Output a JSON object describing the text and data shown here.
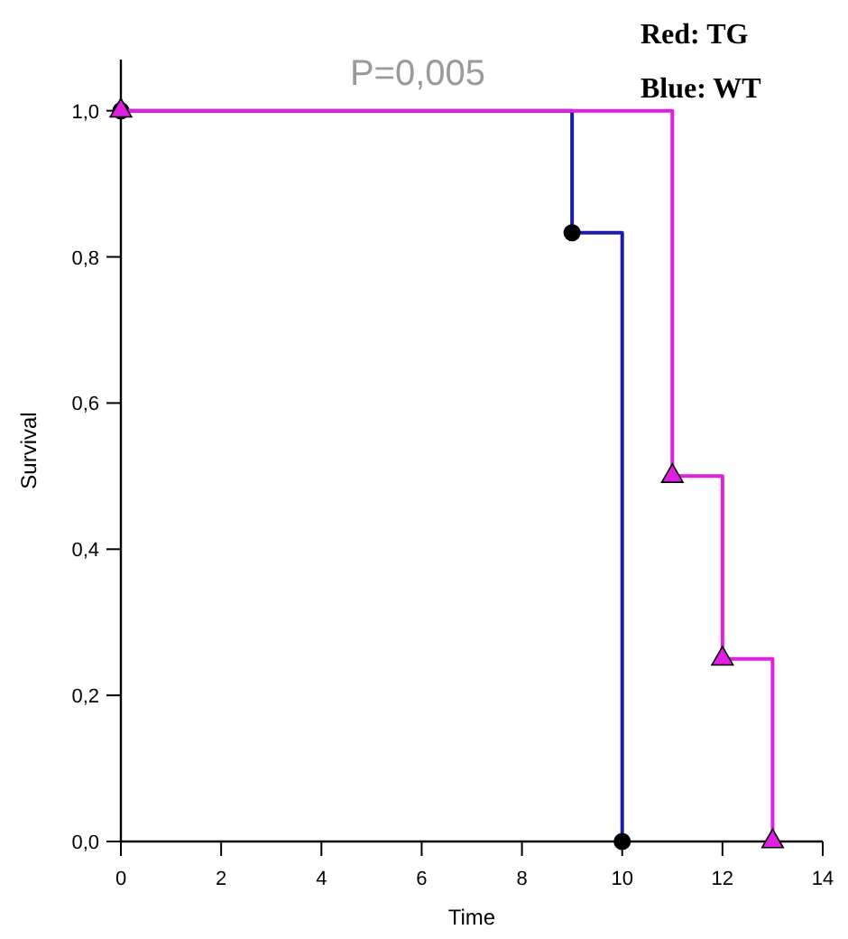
{
  "chart_data": {
    "type": "step",
    "title": "P=0,005",
    "xlabel": "Time",
    "ylabel": "Survival",
    "annotations": [
      "Red: TG",
      "Blue: WT"
    ],
    "xlim": [
      0,
      14
    ],
    "xticks": [
      0,
      2,
      4,
      6,
      8,
      10,
      12,
      14
    ],
    "ylim": [
      0,
      1.07
    ],
    "yticks": [
      {
        "value": 0,
        "label": "0,0"
      },
      {
        "value": 0.2,
        "label": "0,2"
      },
      {
        "value": 0.4,
        "label": "0,4"
      },
      {
        "value": 0.6,
        "label": "0,6"
      },
      {
        "value": 0.8,
        "label": "0,8"
      },
      {
        "value": 1,
        "label": "1,0"
      }
    ],
    "grid": false,
    "series": [
      {
        "color": "#1c1ca8",
        "marker": "circle",
        "x": [
          0,
          9,
          10
        ],
        "values": [
          1,
          0.833,
          0
        ]
      },
      {
        "color": "#e020e0",
        "marker": "triangle",
        "x": [
          0,
          11,
          12,
          13
        ],
        "values": [
          1,
          0.5,
          0.25,
          0
        ]
      }
    ]
  }
}
